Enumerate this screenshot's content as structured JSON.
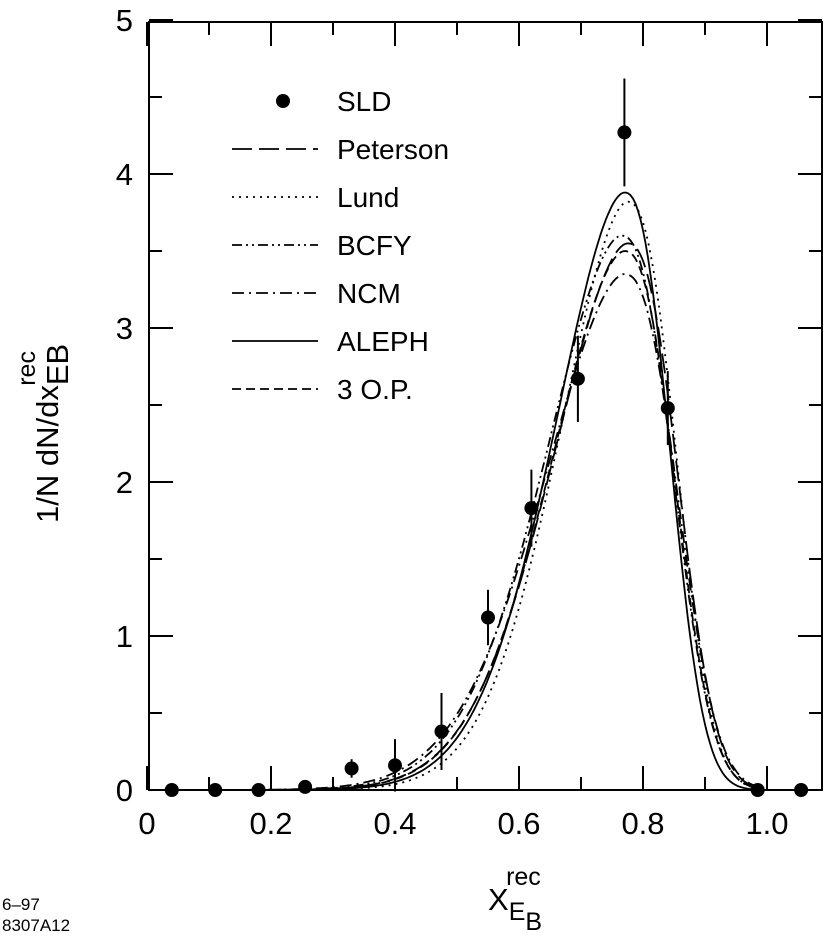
{
  "chart_data": {
    "type": "line",
    "title": "",
    "xlabel": {
      "main": "X",
      "sub": "E",
      "subsub": "B",
      "sup": "rec"
    },
    "ylabel": {
      "main": "1/N dN/dx",
      "sub": "E",
      "subsub": "B",
      "sup": "rec"
    },
    "xlim": [
      0,
      1.1
    ],
    "ylim": [
      0,
      5
    ],
    "x_ticks": [
      {
        "value": 0,
        "label": "0"
      },
      {
        "value": 0.2,
        "label": "0.2"
      },
      {
        "value": 0.4,
        "label": "0.4"
      },
      {
        "value": 0.6,
        "label": "0.6"
      },
      {
        "value": 0.8,
        "label": "0.8"
      },
      {
        "value": 1.0,
        "label": "1.0"
      }
    ],
    "y_ticks": [
      {
        "value": 0,
        "label": "0"
      },
      {
        "value": 1,
        "label": "1"
      },
      {
        "value": 2,
        "label": "2"
      },
      {
        "value": 3,
        "label": "3"
      },
      {
        "value": 4,
        "label": "4"
      },
      {
        "value": 5,
        "label": "5"
      }
    ],
    "x_minor_step": 0.1,
    "y_minor_step": 0.5,
    "legend_position": "upper-left",
    "data_series": {
      "name": "SLD",
      "x": [
        0.04,
        0.11,
        0.18,
        0.255,
        0.33,
        0.4,
        0.475,
        0.55,
        0.62,
        0.695,
        0.77,
        0.84,
        0.985,
        1.055
      ],
      "y": [
        0.0,
        0.0,
        0.0,
        0.02,
        0.14,
        0.16,
        0.38,
        1.12,
        1.83,
        2.67,
        4.27,
        2.48,
        0.0,
        0.0
      ],
      "yerr": [
        0.02,
        0.02,
        0.02,
        0.03,
        0.06,
        0.17,
        0.25,
        0.18,
        0.25,
        0.28,
        0.35,
        0.24,
        0.02,
        0.02
      ]
    },
    "model_series": [
      {
        "name": "Peterson",
        "style": "long-dash",
        "peak": 3.55,
        "peak_x": 0.775,
        "sigma_left": 0.12,
        "sigma_right": 0.078
      },
      {
        "name": "Lund",
        "style": "dotted",
        "peak": 3.82,
        "peak_x": 0.775,
        "sigma_left": 0.109,
        "sigma_right": 0.075
      },
      {
        "name": "BCFY",
        "style": "dash-dot-dot",
        "peak": 3.6,
        "peak_x": 0.765,
        "sigma_left": 0.121,
        "sigma_right": 0.08
      },
      {
        "name": "NCM",
        "style": "dash-dot",
        "peak": 3.35,
        "peak_x": 0.77,
        "sigma_left": 0.128,
        "sigma_right": 0.082
      },
      {
        "name": "ALEPH",
        "style": "solid",
        "peak": 3.88,
        "peak_x": 0.77,
        "sigma_left": 0.112,
        "sigma_right": 0.07
      },
      {
        "name": "3 O.P.",
        "style": "short-dash",
        "peak": 3.5,
        "peak_x": 0.77,
        "sigma_left": 0.118,
        "sigma_right": 0.078
      }
    ]
  },
  "footnote": {
    "line1": "6–97",
    "line2": "8307A12"
  }
}
